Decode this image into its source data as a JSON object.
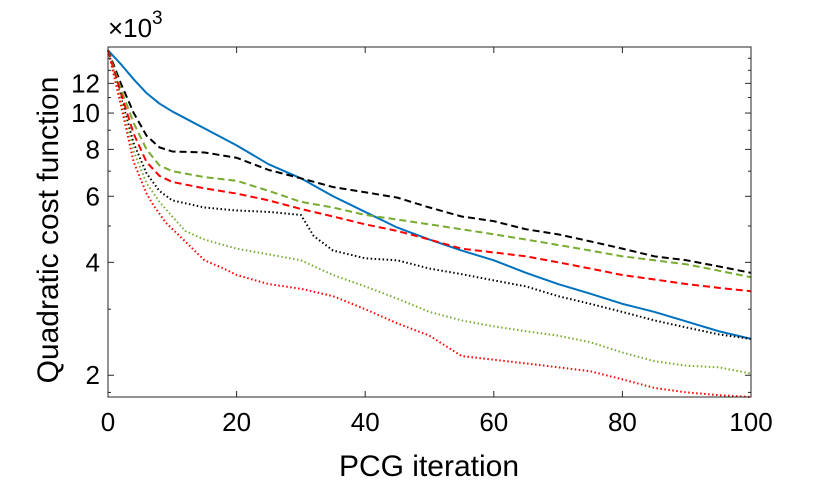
{
  "chart_data": {
    "type": "line",
    "title": "",
    "xlabel": "PCG iteration",
    "ylabel": "Quadratic cost function",
    "y_multiplier_base": "×10",
    "y_multiplier_exponent": "3",
    "yscale": "log",
    "xlim": [
      0,
      100
    ],
    "ylim": [
      1.75,
      15
    ],
    "x_ticks": [
      0,
      20,
      40,
      60,
      80,
      100
    ],
    "x_tick_labels": [
      "0",
      "20",
      "40",
      "60",
      "80",
      "100"
    ],
    "y_ticks": [
      2,
      4,
      6,
      8,
      10,
      12
    ],
    "y_tick_labels": [
      "2",
      "4",
      "6",
      "8",
      "10",
      "12"
    ],
    "grid": false,
    "series": [
      {
        "name": "solid-blue",
        "color": "#0072BD",
        "dash": "solid",
        "x": [
          0,
          2,
          4,
          6,
          8,
          10,
          15,
          20,
          25,
          30,
          35,
          40,
          45,
          50,
          55,
          60,
          65,
          70,
          75,
          80,
          85,
          90,
          95,
          100
        ],
        "y": [
          14.7,
          13.5,
          12.3,
          11.3,
          10.6,
          10.1,
          9.1,
          8.2,
          7.3,
          6.7,
          6.0,
          5.45,
          4.95,
          4.6,
          4.3,
          4.05,
          3.75,
          3.5,
          3.3,
          3.1,
          2.95,
          2.78,
          2.62,
          2.5
        ]
      },
      {
        "name": "dashed-black",
        "color": "#000000",
        "dash": "dashed",
        "x": [
          0,
          2,
          4,
          6,
          8,
          10,
          15,
          20,
          25,
          30,
          35,
          40,
          45,
          50,
          55,
          60,
          65,
          70,
          75,
          80,
          85,
          90,
          95,
          100
        ],
        "y": [
          14.7,
          12.0,
          10.0,
          8.7,
          8.1,
          7.9,
          7.85,
          7.6,
          7.05,
          6.7,
          6.35,
          6.15,
          5.95,
          5.6,
          5.3,
          5.15,
          4.9,
          4.75,
          4.55,
          4.35,
          4.15,
          4.05,
          3.9,
          3.75
        ]
      },
      {
        "name": "dashed-green",
        "color": "#77AC30",
        "dash": "dashed",
        "x": [
          0,
          2,
          4,
          6,
          8,
          10,
          15,
          20,
          25,
          30,
          35,
          40,
          45,
          50,
          55,
          60,
          65,
          70,
          75,
          80,
          85,
          90,
          95,
          100
        ],
        "y": [
          14.7,
          11.6,
          9.4,
          8.0,
          7.25,
          7.0,
          6.75,
          6.6,
          6.2,
          5.8,
          5.6,
          5.35,
          5.2,
          5.05,
          4.9,
          4.75,
          4.6,
          4.45,
          4.3,
          4.15,
          4.05,
          3.95,
          3.8,
          3.65
        ]
      },
      {
        "name": "dashed-red",
        "color": "#FF0000",
        "dash": "dashed",
        "x": [
          0,
          2,
          4,
          6,
          8,
          10,
          15,
          20,
          25,
          30,
          35,
          40,
          45,
          50,
          55,
          60,
          65,
          70,
          75,
          80,
          85,
          90,
          95,
          100
        ],
        "y": [
          14.7,
          11.3,
          8.8,
          7.4,
          6.8,
          6.55,
          6.3,
          6.1,
          5.85,
          5.55,
          5.3,
          5.05,
          4.85,
          4.6,
          4.35,
          4.25,
          4.15,
          4.0,
          3.85,
          3.7,
          3.6,
          3.5,
          3.42,
          3.35
        ]
      },
      {
        "name": "dotted-black",
        "color": "#000000",
        "dash": "dotted",
        "x": [
          0,
          2,
          4,
          6,
          8,
          10,
          15,
          20,
          25,
          30,
          32,
          35,
          40,
          45,
          50,
          55,
          60,
          65,
          70,
          75,
          80,
          85,
          90,
          95,
          100
        ],
        "y": [
          14.7,
          11.0,
          8.3,
          6.9,
          6.2,
          5.85,
          5.6,
          5.5,
          5.45,
          5.35,
          4.7,
          4.3,
          4.1,
          4.05,
          3.85,
          3.72,
          3.58,
          3.45,
          3.25,
          3.1,
          2.95,
          2.8,
          2.68,
          2.57,
          2.5
        ]
      },
      {
        "name": "dotted-green",
        "color": "#77AC30",
        "dash": "dotted",
        "x": [
          0,
          2,
          4,
          6,
          8,
          10,
          12,
          15,
          20,
          25,
          30,
          35,
          40,
          45,
          50,
          55,
          60,
          65,
          70,
          75,
          80,
          85,
          90,
          95,
          100
        ],
        "y": [
          14.7,
          10.8,
          7.9,
          6.5,
          5.8,
          5.3,
          4.85,
          4.6,
          4.35,
          4.2,
          4.05,
          3.7,
          3.45,
          3.2,
          2.95,
          2.8,
          2.7,
          2.62,
          2.55,
          2.45,
          2.3,
          2.18,
          2.12,
          2.1,
          2.02
        ]
      },
      {
        "name": "dotted-red",
        "color": "#FF0000",
        "dash": "dotted",
        "x": [
          0,
          2,
          4,
          6,
          7,
          9,
          12,
          15,
          18,
          20,
          25,
          30,
          35,
          40,
          45,
          50,
          55,
          60,
          65,
          70,
          75,
          80,
          85,
          90,
          95,
          100
        ],
        "y": [
          14.7,
          10.5,
          7.4,
          6.1,
          5.7,
          5.1,
          4.55,
          4.05,
          3.85,
          3.7,
          3.5,
          3.4,
          3.25,
          3.0,
          2.75,
          2.55,
          2.25,
          2.2,
          2.15,
          2.1,
          2.05,
          1.95,
          1.85,
          1.8,
          1.77,
          1.75
        ]
      }
    ]
  }
}
